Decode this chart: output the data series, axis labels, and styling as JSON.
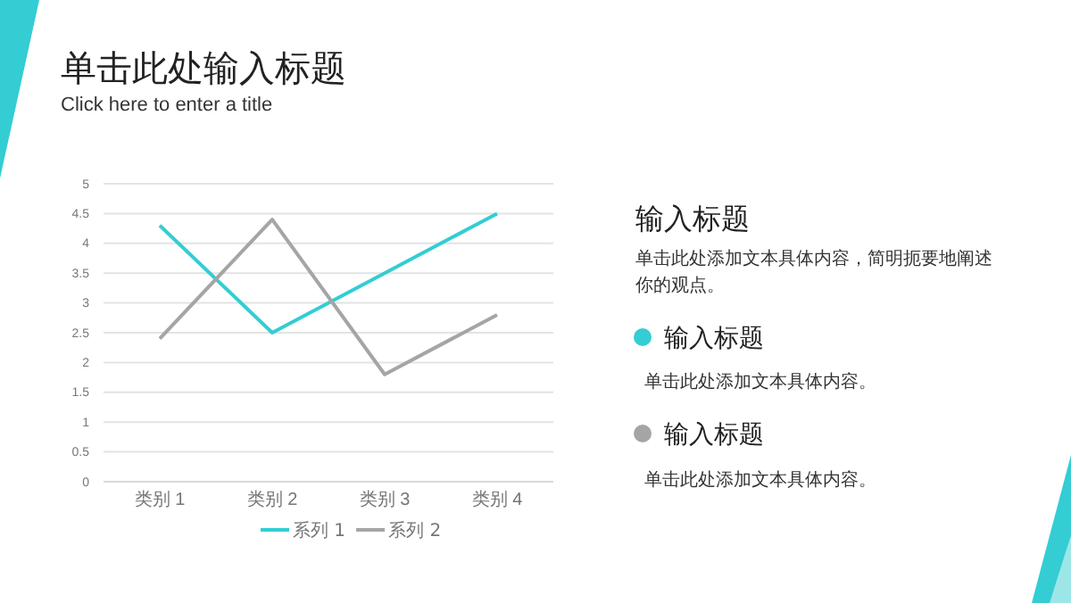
{
  "chart_data": {
    "type": "line",
    "title": "单击此处输入标题",
    "subtitle": "Click here to enter a title",
    "categories": [
      "类别 1",
      "类别 2",
      "类别 3",
      "类别 4"
    ],
    "series": [
      {
        "name": "系列 1",
        "color": "#33cdd3",
        "values": [
          4.3,
          2.5,
          3.5,
          4.5
        ]
      },
      {
        "name": "系列 2",
        "color": "#a5a5a5",
        "values": [
          2.4,
          4.4,
          1.8,
          2.8
        ]
      }
    ],
    "ylim": [
      0,
      5
    ],
    "yticks": [
      0,
      0.5,
      1,
      1.5,
      2,
      2.5,
      3,
      3.5,
      4,
      4.5,
      5
    ],
    "grid": "y",
    "legend": "bottom",
    "marker": "none",
    "line_style": "solid",
    "annotations": [
      "输入标题",
      "单击此处添加文本具体内容，简明扼要地阐述你的观点。",
      "输入标题",
      "单击此处添加文本具体内容。",
      "输入标题",
      "单击此处添加文本具体内容。"
    ]
  }
}
